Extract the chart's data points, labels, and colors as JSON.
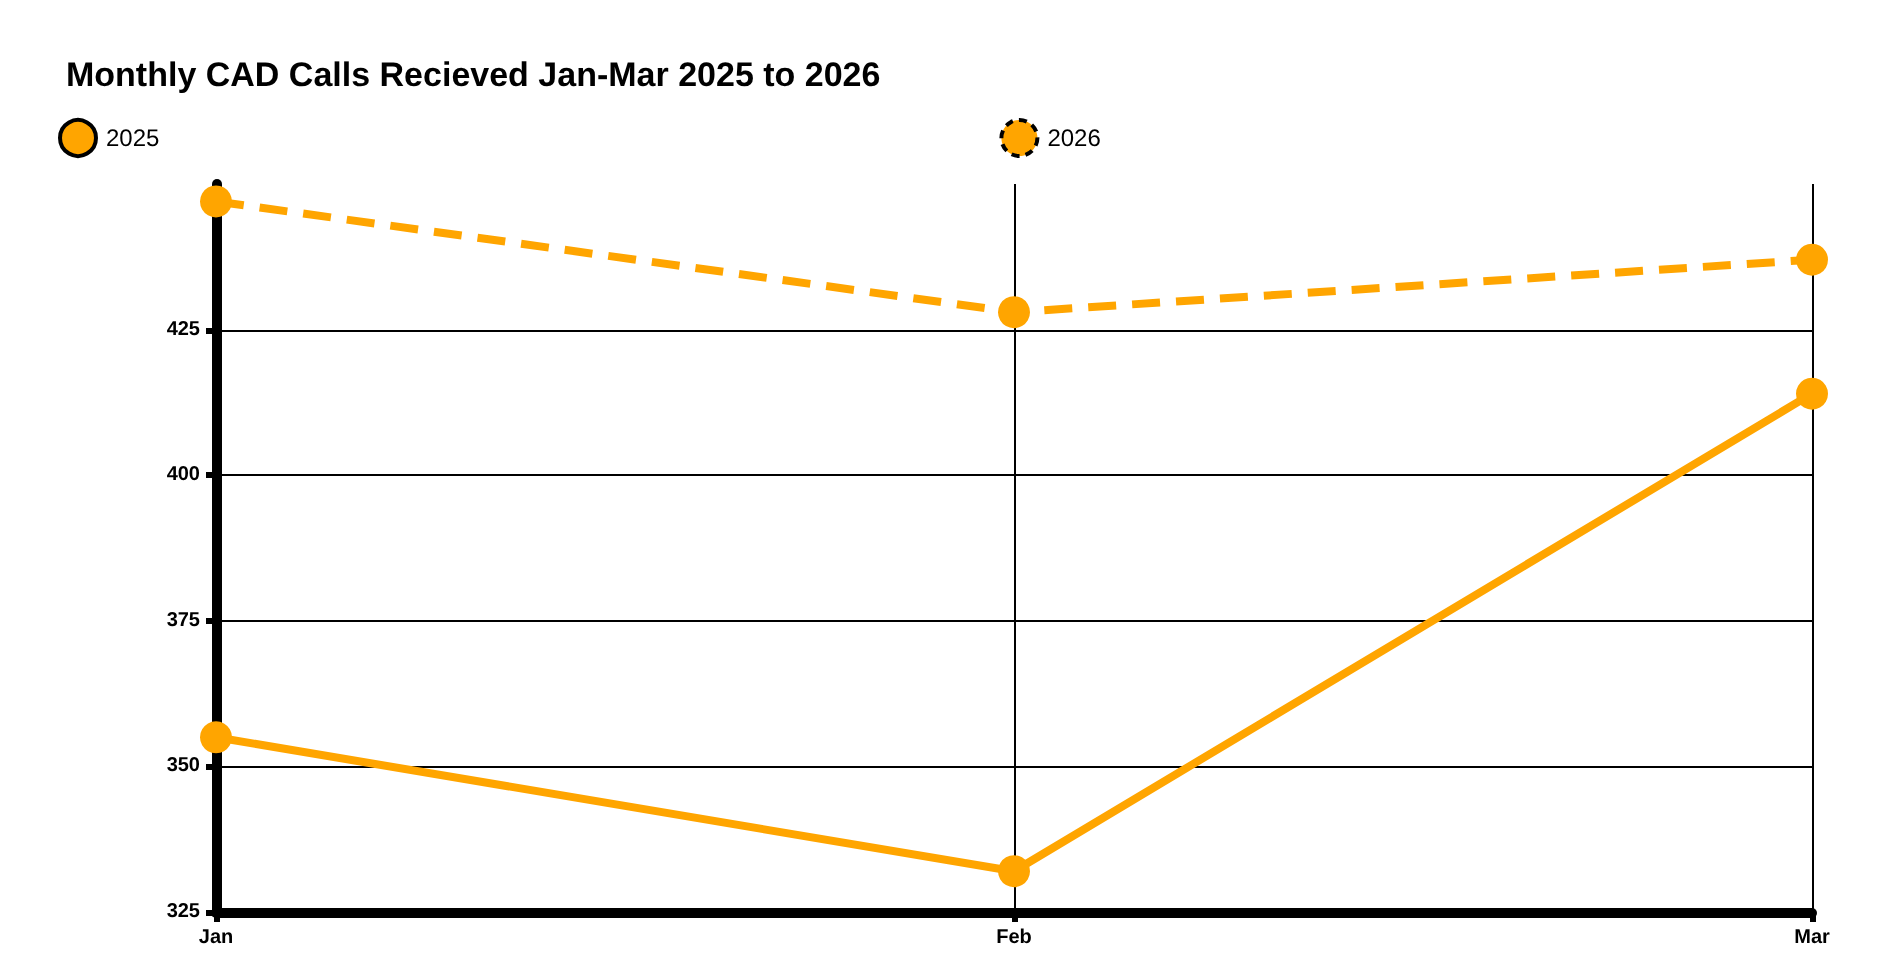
{
  "chart_data": {
    "type": "line",
    "title": "Monthly CAD Calls Recieved Jan-Mar 2025 to 2026",
    "categories": [
      "Jan",
      "Feb",
      "Mar"
    ],
    "series": [
      {
        "name": "2025",
        "color": "#ffa500",
        "values": [
          355,
          332,
          414
        ],
        "line_style": "solid"
      },
      {
        "name": "2026",
        "color": "#ffa500",
        "values": [
          447,
          428,
          437
        ],
        "line_style": "dashed"
      }
    ],
    "ylim": [
      325,
      450
    ],
    "yticks": [
      325,
      350,
      375,
      400,
      425
    ],
    "grid": true,
    "legend": "top",
    "marker": "circle"
  }
}
